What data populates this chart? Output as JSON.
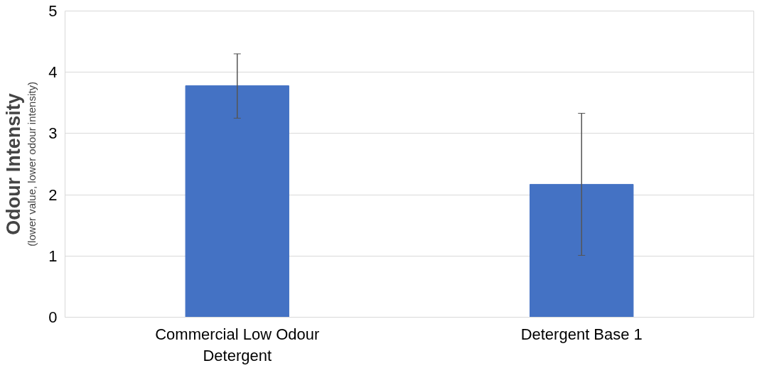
{
  "chart_data": {
    "type": "bar",
    "ylabel": "Odour Intensity",
    "annotations": [
      "(lower value, lower odour intensity)"
    ],
    "categories": [
      "Commercial Low Odour\nDetergent",
      "Detergent Base 1"
    ],
    "values": [
      3.78,
      2.17
    ],
    "color": "#4472c4",
    "errors": [
      [
        3.25,
        4.3
      ],
      [
        1.01,
        3.33
      ]
    ],
    "ylim": [
      0,
      5
    ],
    "yticks": [
      0,
      1,
      2,
      3,
      4,
      5
    ],
    "grid": "y"
  }
}
